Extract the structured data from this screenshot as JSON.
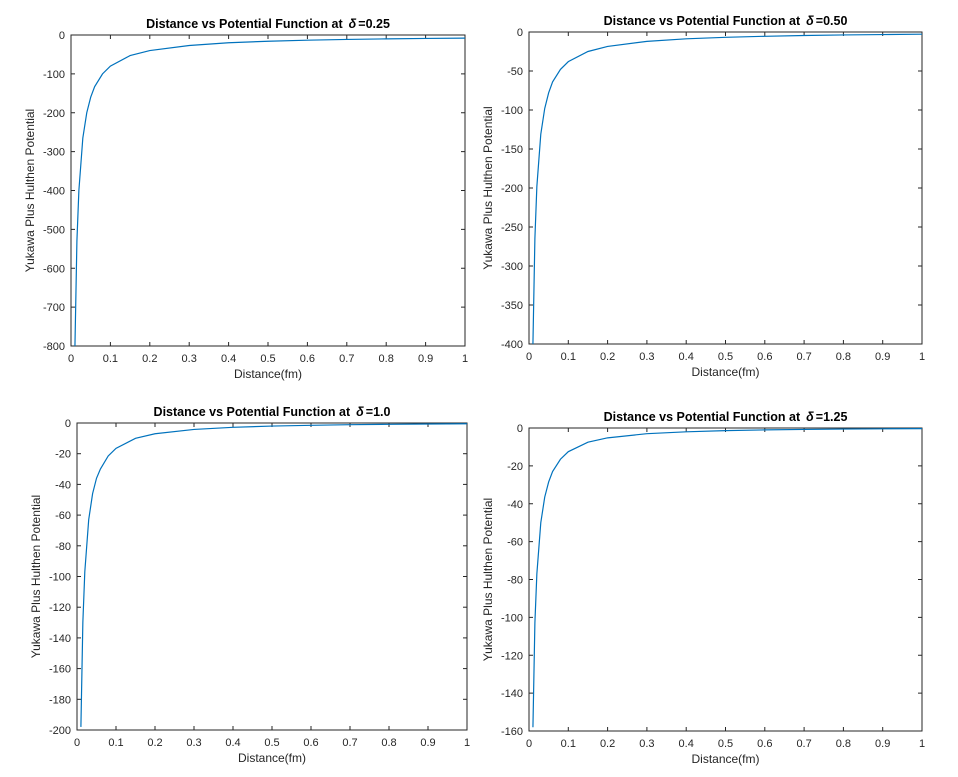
{
  "chart_data": [
    {
      "type": "line",
      "title": "Distance vs Potential Function at",
      "title_symbol": "δ",
      "title_value": "=0.25",
      "xlabel": "Distance(fm)",
      "ylabel": "Yukawa Plus Hulthen Potential",
      "xlim": [
        0,
        1
      ],
      "ylim": [
        -800,
        0
      ],
      "xticks": [
        "0",
        "0.1",
        "0.2",
        "0.3",
        "0.4",
        "0.5",
        "0.6",
        "0.7",
        "0.8",
        "0.9",
        "1"
      ],
      "yticks": [
        "0",
        "-100",
        "-200",
        "-300",
        "-400",
        "-500",
        "-600",
        "-700",
        "-800"
      ],
      "grid": false,
      "color": "#0072bd",
      "series": [
        {
          "x": [
            0.01,
            0.015,
            0.02,
            0.03,
            0.04,
            0.05,
            0.06,
            0.08,
            0.1,
            0.15,
            0.2,
            0.3,
            0.4,
            0.5,
            0.6,
            0.7,
            0.8,
            0.9,
            1.0
          ],
          "y": [
            -800,
            -530,
            -400,
            -265,
            -200,
            -160,
            -133,
            -100,
            -80,
            -53,
            -40,
            -27,
            -20,
            -16,
            -13.3,
            -11.4,
            -10,
            -8.9,
            -8
          ]
        }
      ]
    },
    {
      "type": "line",
      "title": "Distance vs Potential Function at",
      "title_symbol": "δ",
      "title_value": "=0.50",
      "xlabel": "Distance(fm)",
      "ylabel": "Yukawa Plus Hulthen Potential",
      "xlim": [
        0,
        1
      ],
      "ylim": [
        -400,
        0
      ],
      "xticks": [
        "0",
        "0.1",
        "0.2",
        "0.3",
        "0.4",
        "0.5",
        "0.6",
        "0.7",
        "0.8",
        "0.9",
        "1"
      ],
      "yticks": [
        "0",
        "-50",
        "-100",
        "-150",
        "-200",
        "-250",
        "-300",
        "-350",
        "-400"
      ],
      "grid": false,
      "color": "#0072bd",
      "series": [
        {
          "x": [
            0.01,
            0.015,
            0.02,
            0.03,
            0.04,
            0.05,
            0.06,
            0.08,
            0.1,
            0.15,
            0.2,
            0.3,
            0.4,
            0.5,
            0.6,
            0.7,
            0.8,
            0.9,
            1.0
          ],
          "y": [
            -400,
            -265,
            -198,
            -131,
            -98,
            -78,
            -64,
            -48,
            -38,
            -25,
            -18.5,
            -12,
            -8.7,
            -6.8,
            -5.5,
            -4.5,
            -3.8,
            -3.3,
            -2.8
          ]
        }
      ]
    },
    {
      "type": "line",
      "title": "Distance vs Potential Function at",
      "title_symbol": "δ",
      "title_value": "=1.0",
      "xlabel": "Distance(fm)",
      "ylabel": "Yukawa Plus Hulthen Potential",
      "xlim": [
        0,
        1
      ],
      "ylim": [
        -200,
        0
      ],
      "xticks": [
        "0",
        "0.1",
        "0.2",
        "0.3",
        "0.4",
        "0.5",
        "0.6",
        "0.7",
        "0.8",
        "0.9",
        "1"
      ],
      "yticks": [
        "0",
        "-20",
        "-40",
        "-60",
        "-80",
        "-100",
        "-120",
        "-140",
        "-160",
        "-180",
        "-200"
      ],
      "grid": false,
      "color": "#0072bd",
      "series": [
        {
          "x": [
            0.01,
            0.015,
            0.02,
            0.03,
            0.04,
            0.05,
            0.06,
            0.08,
            0.1,
            0.15,
            0.2,
            0.3,
            0.4,
            0.5,
            0.6,
            0.7,
            0.8,
            0.9,
            1.0
          ],
          "y": [
            -198,
            -130,
            -97,
            -63,
            -46,
            -36,
            -30,
            -21.5,
            -16.5,
            -10,
            -7,
            -4.2,
            -2.8,
            -2,
            -1.5,
            -1.1,
            -0.85,
            -0.65,
            -0.5
          ]
        }
      ]
    },
    {
      "type": "line",
      "title": "Distance vs Potential Function at",
      "title_symbol": "δ",
      "title_value": "=1.25",
      "xlabel": "Distance(fm)",
      "ylabel": "Yukawa Plus Hulthen Potential",
      "xlim": [
        0,
        1
      ],
      "ylim": [
        -160,
        0
      ],
      "xticks": [
        "0",
        "0.1",
        "0.2",
        "0.3",
        "0.4",
        "0.5",
        "0.6",
        "0.7",
        "0.8",
        "0.9",
        "1"
      ],
      "yticks": [
        "0",
        "-20",
        "-40",
        "-60",
        "-80",
        "-100",
        "-120",
        "-140",
        "-160"
      ],
      "grid": false,
      "color": "#0072bd",
      "series": [
        {
          "x": [
            0.01,
            0.015,
            0.02,
            0.03,
            0.04,
            0.05,
            0.06,
            0.08,
            0.1,
            0.15,
            0.2,
            0.3,
            0.4,
            0.5,
            0.6,
            0.7,
            0.8,
            0.9,
            1.0
          ],
          "y": [
            -158,
            -103,
            -77,
            -50,
            -36.5,
            -28.5,
            -23,
            -16.5,
            -12.5,
            -7.5,
            -5.2,
            -3,
            -2,
            -1.4,
            -1,
            -0.75,
            -0.55,
            -0.42,
            -0.32
          ]
        }
      ]
    }
  ]
}
